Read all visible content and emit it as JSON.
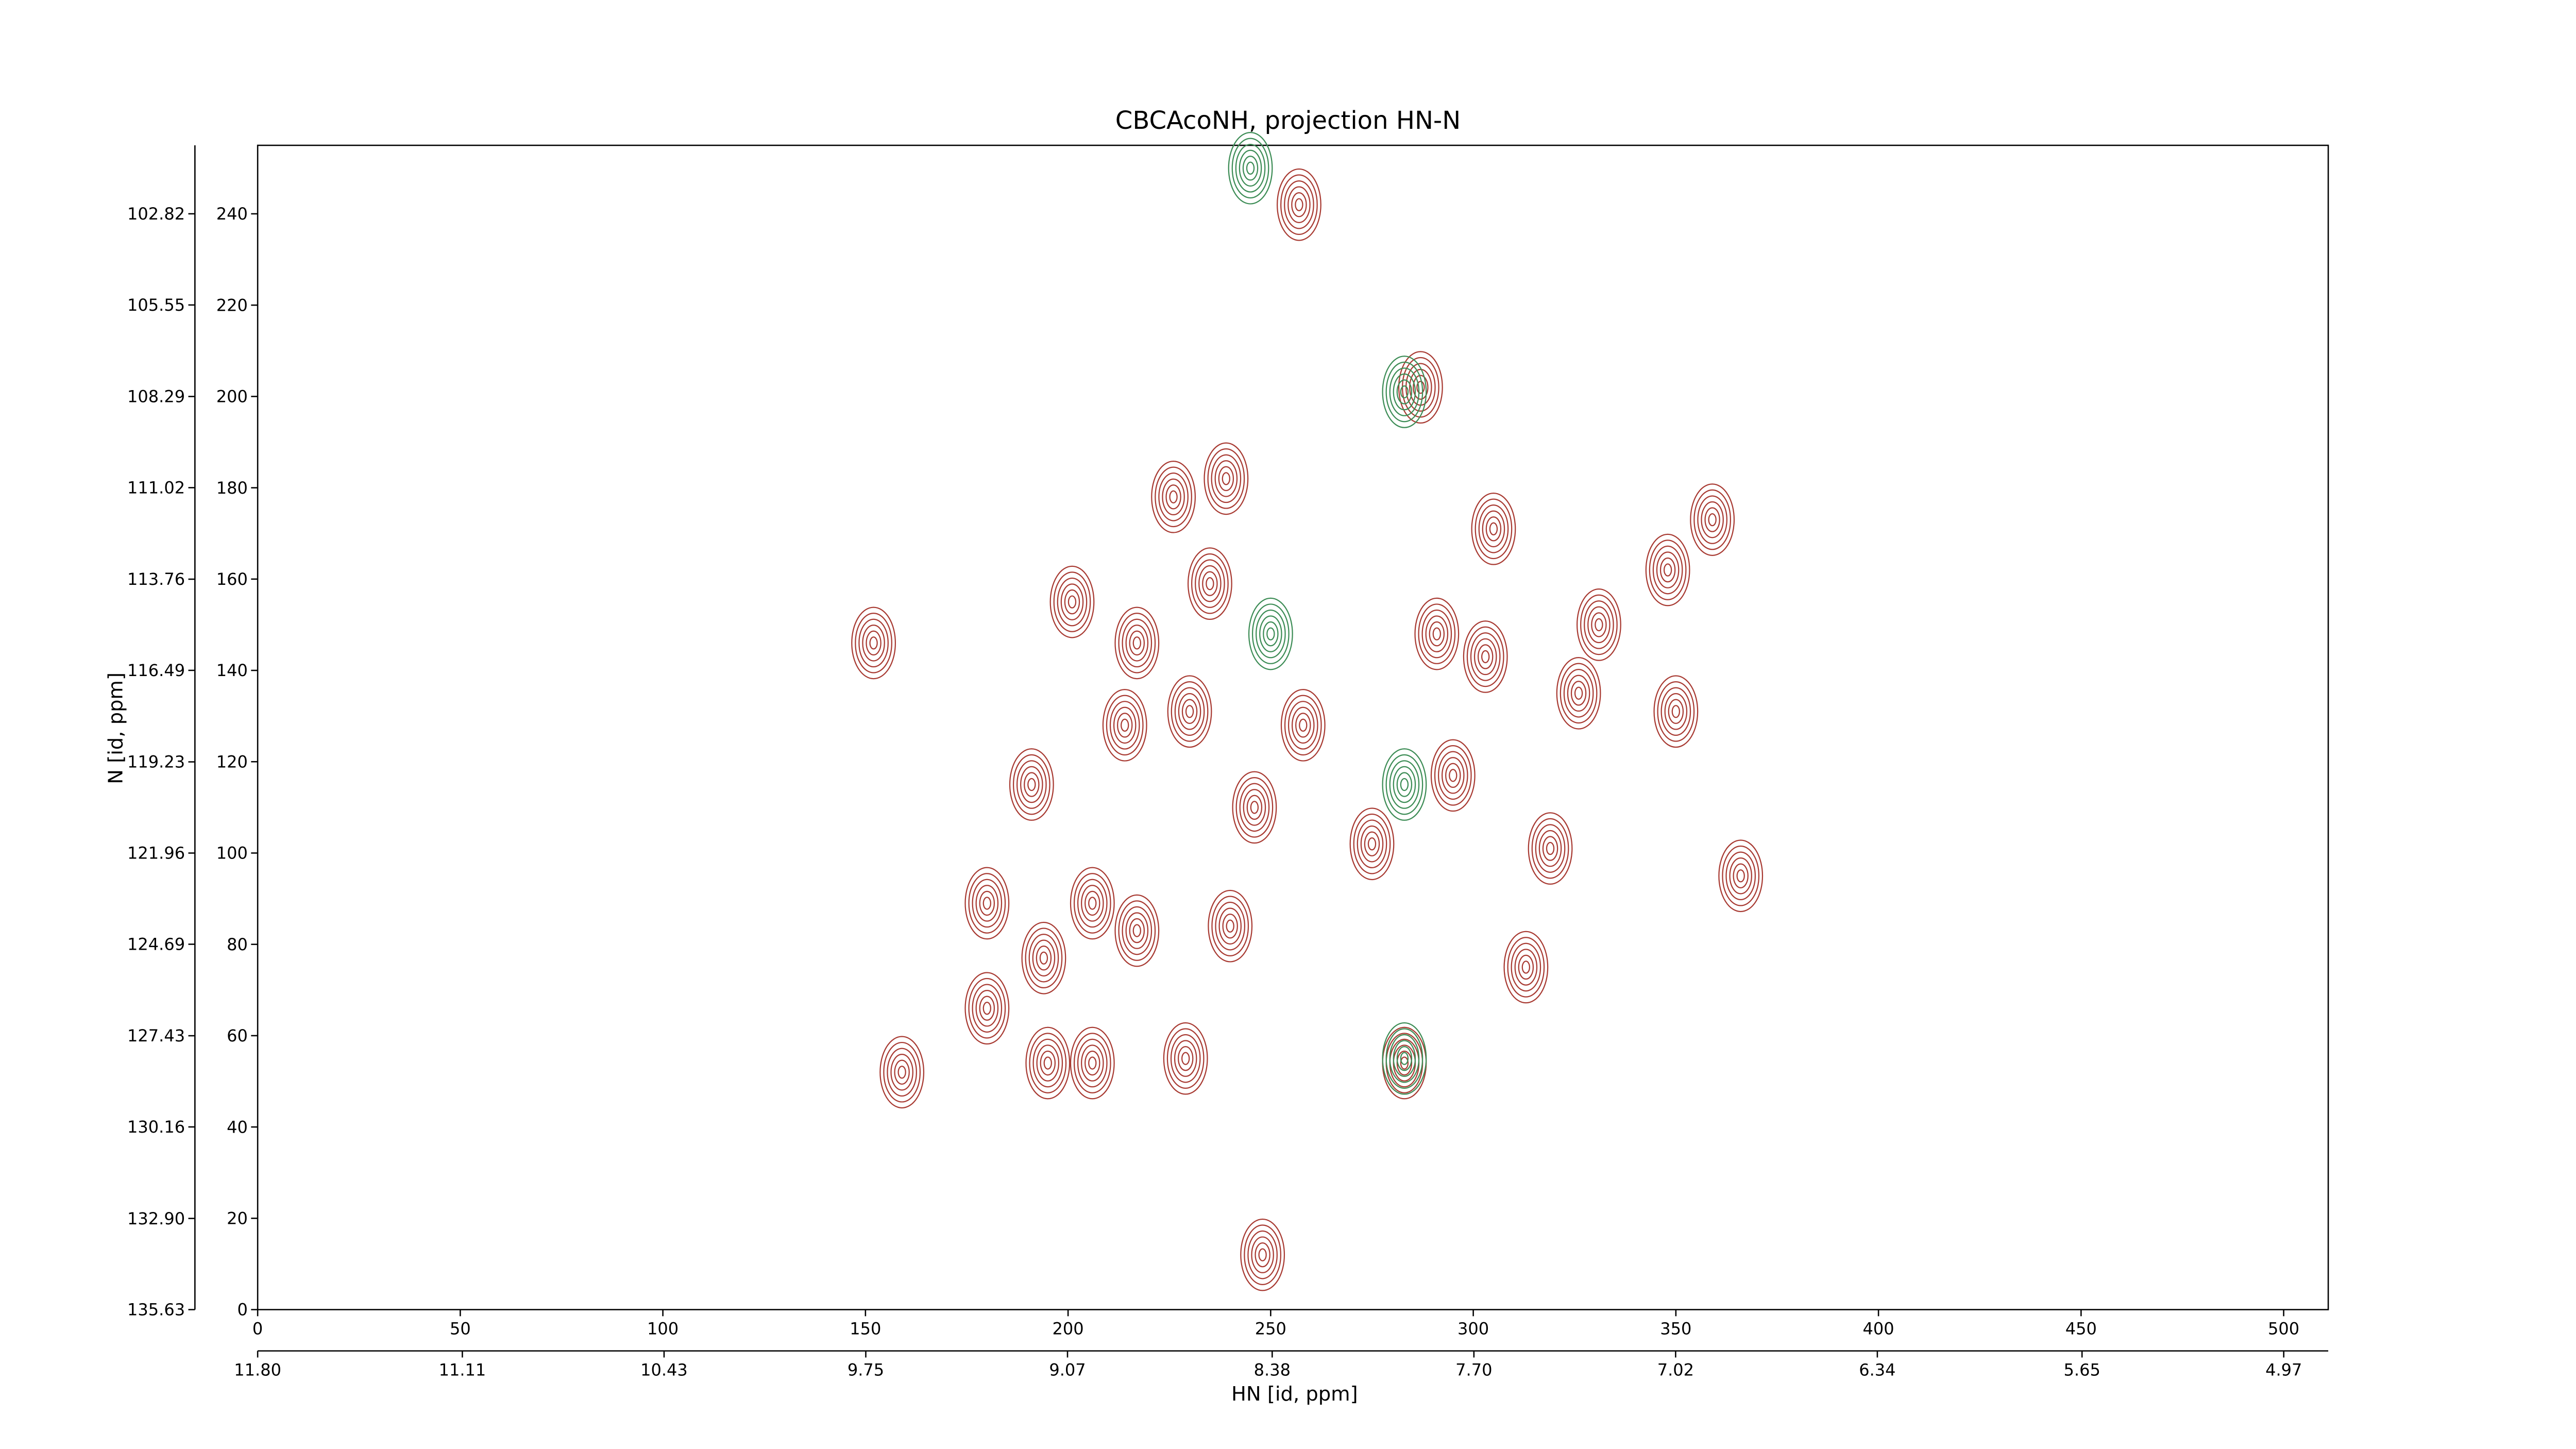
{
  "chart_data": {
    "type": "contour",
    "title": "CBCAcoNH, projection HN-N",
    "xlabel": "HN [id, ppm]",
    "ylabel": "N [id, ppm]",
    "xlim": [
      0,
      511
    ],
    "xticks": [
      0,
      50,
      100,
      150,
      200,
      250,
      300,
      350,
      400,
      450,
      500
    ],
    "x2lim": [
      11.8,
      4.82
    ],
    "x2ticks": [
      {
        "value": 11.8,
        "label": "11.80"
      },
      11.11,
      10.43,
      9.75,
      9.07,
      8.38,
      {
        "value": 7.7,
        "label": "7.70"
      },
      7.02,
      6.34,
      5.65,
      4.97
    ],
    "ylim": [
      0,
      255
    ],
    "yticks": [
      0,
      20,
      40,
      60,
      80,
      100,
      120,
      140,
      160,
      180,
      200,
      220,
      240
    ],
    "y2lim": [
      135.63,
      100.77
    ],
    "y2ticks": [
      135.63,
      {
        "value": 132.9,
        "label": "132.90"
      },
      130.16,
      127.43,
      124.69,
      121.96,
      119.23,
      116.49,
      113.76,
      111.02,
      108.29,
      105.55,
      102.82
    ],
    "series": [
      {
        "color": "#a83a32",
        "x": [
          152,
          159,
          180,
          180,
          191,
          194,
          195,
          201,
          206,
          206,
          217,
          217,
          226,
          229,
          235,
          239,
          257,
          287,
          291,
          303,
          305,
          319,
          313,
          326,
          331,
          350,
          348,
          359,
          366,
          283,
          275,
          246,
          230,
          258,
          240,
          295,
          214,
          248
        ],
        "y": [
          146,
          52,
          89,
          66,
          115,
          77,
          54,
          155,
          89,
          54,
          83,
          146,
          178,
          55,
          159,
          182,
          242,
          202,
          148,
          143,
          171,
          101,
          75,
          135,
          150,
          131,
          162,
          173,
          95,
          54,
          102,
          110,
          131,
          128,
          84,
          117,
          128,
          12
        ]
      },
      {
        "color": "#3c8c55",
        "x": [
          283,
          283,
          250,
          283,
          245
        ],
        "y": [
          201,
          55,
          148,
          115,
          250
        ]
      }
    ]
  }
}
